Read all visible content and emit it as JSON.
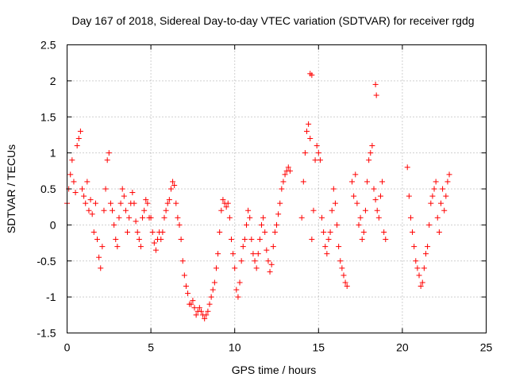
{
  "chart_data": {
    "type": "scatter",
    "title": "Day 167 of 2018, Sidereal Day-to-day VTEC variation (SDTVAR) for receiver rgdg",
    "xlabel": "GPS time / hours",
    "ylabel": "SDTVAR / TECUs",
    "xlim": [
      0,
      25
    ],
    "ylim": [
      -1.5,
      2.5
    ],
    "xticks": [
      0,
      5,
      10,
      15,
      20,
      25
    ],
    "yticks": [
      -1.5,
      -1,
      -0.5,
      0,
      0.5,
      1,
      1.5,
      2,
      2.5
    ],
    "xtick_labels": [
      "0",
      "5",
      "10",
      "15",
      "20",
      "25"
    ],
    "ytick_labels": [
      "-1.5",
      "-1",
      "-0.5",
      "0",
      "0.5",
      "1",
      "1.5",
      "2",
      "2.5"
    ],
    "grid": true,
    "marker": "+",
    "color": "#ff0000",
    "series": [
      {
        "name": "SDTVAR",
        "x": [
          0.0,
          0.1,
          0.2,
          0.3,
          0.4,
          0.5,
          0.6,
          0.7,
          0.8,
          0.9,
          1.0,
          1.1,
          1.2,
          1.3,
          1.4,
          1.5,
          1.6,
          1.7,
          1.8,
          1.9,
          2.0,
          2.1,
          2.2,
          2.3,
          2.4,
          2.5,
          2.6,
          2.7,
          2.8,
          2.9,
          3.0,
          3.1,
          3.2,
          3.3,
          3.4,
          3.5,
          3.6,
          3.7,
          3.8,
          3.9,
          4.0,
          4.1,
          4.2,
          4.3,
          4.4,
          4.5,
          4.6,
          4.7,
          4.8,
          4.9,
          5.0,
          5.1,
          5.2,
          5.3,
          5.4,
          5.5,
          5.6,
          5.7,
          5.8,
          5.9,
          6.0,
          6.1,
          6.2,
          6.3,
          6.4,
          6.5,
          6.6,
          6.7,
          6.8,
          6.9,
          7.0,
          7.1,
          7.2,
          7.3,
          7.4,
          7.5,
          7.6,
          7.7,
          7.8,
          7.9,
          8.0,
          8.1,
          8.2,
          8.3,
          8.4,
          8.5,
          8.6,
          8.7,
          8.8,
          8.9,
          9.0,
          9.1,
          9.2,
          9.3,
          9.4,
          9.5,
          9.6,
          9.7,
          9.8,
          9.9,
          10.0,
          10.1,
          10.2,
          10.3,
          10.4,
          10.5,
          10.6,
          10.7,
          10.8,
          10.9,
          11.0,
          11.1,
          11.2,
          11.3,
          11.4,
          11.5,
          11.6,
          11.7,
          11.8,
          11.9,
          12.0,
          12.1,
          12.2,
          12.3,
          12.4,
          12.5,
          12.6,
          12.7,
          12.8,
          12.9,
          13.0,
          13.1,
          13.2,
          13.3,
          14.0,
          14.1,
          14.2,
          14.3,
          14.4,
          14.5,
          14.6,
          14.7,
          14.8,
          14.9,
          15.0,
          15.1,
          15.2,
          15.3,
          15.4,
          15.5,
          15.6,
          15.7,
          15.8,
          15.9,
          16.0,
          16.1,
          16.2,
          16.3,
          16.4,
          16.5,
          16.6,
          16.7,
          17.0,
          17.1,
          17.2,
          17.3,
          17.4,
          17.5,
          17.6,
          17.7,
          17.8,
          17.9,
          18.0,
          18.1,
          18.2,
          18.3,
          18.4,
          18.5,
          18.6,
          18.7,
          18.8,
          18.9,
          19.0,
          20.3,
          20.4,
          20.5,
          20.6,
          20.7,
          20.8,
          20.9,
          21.0,
          21.1,
          21.2,
          21.3,
          21.4,
          21.5,
          21.6,
          21.7,
          21.8,
          21.9,
          22.0,
          22.1,
          22.2,
          22.3,
          22.4,
          22.5,
          22.6,
          22.7,
          22.8,
          14.5,
          14.6,
          18.4,
          18.45
        ],
        "y": [
          0.3,
          0.5,
          0.7,
          0.9,
          0.6,
          0.45,
          1.1,
          1.2,
          1.3,
          0.5,
          0.4,
          0.3,
          0.6,
          0.2,
          0.35,
          0.15,
          -0.1,
          0.3,
          -0.2,
          -0.45,
          -0.6,
          -0.3,
          0.2,
          0.5,
          0.9,
          1.0,
          0.3,
          0.2,
          0.0,
          -0.2,
          -0.3,
          0.1,
          0.3,
          0.5,
          0.4,
          0.2,
          -0.1,
          0.1,
          0.3,
          0.45,
          0.3,
          0.05,
          -0.1,
          -0.2,
          -0.3,
          0.1,
          0.2,
          0.35,
          0.3,
          0.1,
          0.1,
          -0.1,
          -0.25,
          -0.35,
          -0.2,
          -0.1,
          -0.2,
          -0.1,
          0.1,
          0.2,
          0.3,
          0.35,
          0.5,
          0.6,
          0.55,
          0.3,
          0.1,
          0.0,
          -0.2,
          -0.5,
          -0.7,
          -0.85,
          -0.95,
          -1.1,
          -1.1,
          -1.05,
          -1.15,
          -1.25,
          -1.2,
          -1.15,
          -1.2,
          -1.25,
          -1.3,
          -1.25,
          -1.2,
          -1.1,
          -1.0,
          -0.9,
          -0.8,
          -0.6,
          -0.4,
          -0.1,
          0.2,
          0.35,
          0.3,
          0.25,
          0.3,
          0.1,
          -0.2,
          -0.4,
          -0.6,
          -0.9,
          -1.0,
          -0.8,
          -0.5,
          -0.3,
          -0.2,
          0.0,
          0.2,
          0.1,
          -0.2,
          -0.4,
          -0.5,
          -0.6,
          -0.4,
          -0.2,
          0.0,
          0.1,
          -0.1,
          -0.35,
          -0.5,
          -0.65,
          -0.55,
          -0.3,
          -0.1,
          0.0,
          0.15,
          0.3,
          0.5,
          0.6,
          0.7,
          0.75,
          0.8,
          0.75,
          0.1,
          0.6,
          1.0,
          1.3,
          1.4,
          1.2,
          -0.2,
          0.2,
          0.9,
          1.1,
          1.0,
          0.9,
          0.1,
          -0.1,
          -0.3,
          -0.4,
          -0.2,
          -0.1,
          0.2,
          0.5,
          0.3,
          0.0,
          -0.3,
          -0.5,
          -0.6,
          -0.7,
          -0.8,
          -0.85,
          0.6,
          0.4,
          0.7,
          0.3,
          0.0,
          0.1,
          -0.2,
          -0.1,
          0.2,
          0.6,
          0.9,
          1.0,
          1.1,
          0.5,
          0.35,
          0.2,
          0.1,
          0.4,
          0.6,
          -0.1,
          -0.2,
          0.8,
          0.4,
          0.1,
          -0.1,
          -0.3,
          -0.5,
          -0.6,
          -0.7,
          -0.85,
          -0.8,
          -0.6,
          -0.4,
          -0.3,
          0.0,
          0.3,
          0.4,
          0.5,
          0.6,
          0.1,
          -0.1,
          0.3,
          0.5,
          0.2,
          0.4,
          0.6,
          0.7,
          2.1,
          2.08,
          1.95,
          1.8
        ]
      }
    ]
  }
}
